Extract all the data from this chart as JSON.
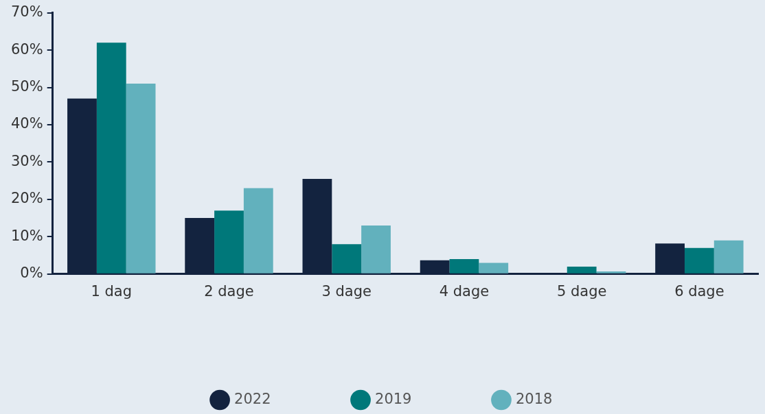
{
  "chart_data": {
    "type": "bar",
    "categories": [
      "1 dag",
      "2 dage",
      "3 dage",
      "4 dage",
      "5 dage",
      "6 dage"
    ],
    "series": [
      {
        "name": "2022",
        "color": "#13233f",
        "values": [
          47,
          15,
          25.5,
          3.7,
          0,
          8.2
        ]
      },
      {
        "name": "2019",
        "color": "#00787a",
        "values": [
          62,
          17,
          8,
          4,
          2,
          7
        ]
      },
      {
        "name": "2018",
        "color": "#62b1bd",
        "values": [
          51,
          23,
          13,
          3,
          0.7,
          9
        ]
      }
    ],
    "ylim": [
      0,
      70
    ],
    "yticks": [
      {
        "value": 0,
        "label": "0%"
      },
      {
        "value": 10,
        "label": "10%"
      },
      {
        "value": 20,
        "label": "20%"
      },
      {
        "value": 30,
        "label": "30%"
      },
      {
        "value": 40,
        "label": "40%"
      },
      {
        "value": 50,
        "label": "50%"
      },
      {
        "value": 60,
        "label": "60%"
      },
      {
        "value": 70,
        "label": "70%"
      }
    ],
    "grid": false,
    "legend": "bottom"
  }
}
